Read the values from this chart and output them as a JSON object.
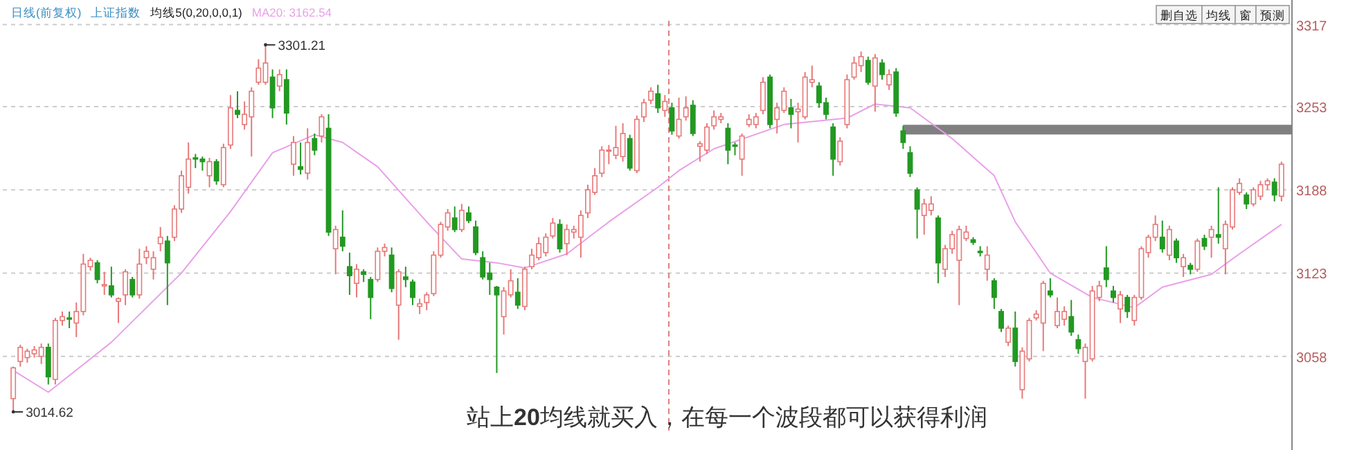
{
  "chart_data": {
    "type": "candlestick",
    "title": "日线(前复权)",
    "subtitle": "上证指数",
    "annotations": [
      "均线5(0,20,0,0,1)",
      "删自选",
      "均线",
      "窗",
      "预测",
      "站上**20**均线就买入，在每一个波段都可以获得利润",
      "3301.21",
      "3014.62"
    ],
    "categories": [
      null,
      null,
      null,
      null,
      null,
      null,
      null,
      null,
      null,
      null,
      null,
      null,
      null,
      null,
      null,
      null,
      null,
      null,
      null,
      null,
      null,
      null,
      null,
      null,
      null,
      null,
      null,
      null,
      null,
      null,
      null,
      null,
      null,
      null,
      null,
      null,
      null,
      null,
      null,
      null,
      null,
      null,
      null,
      null,
      null,
      null,
      null,
      null,
      null,
      null,
      null,
      null,
      null,
      null,
      null,
      null,
      null,
      null,
      null,
      null,
      null,
      null,
      null,
      null,
      null,
      null,
      null,
      null,
      null,
      null,
      null,
      null,
      null,
      null,
      null,
      null,
      null,
      null,
      null,
      null,
      null,
      null,
      null,
      null,
      null,
      null,
      null,
      null,
      null,
      null,
      null,
      null,
      null,
      null,
      null,
      null,
      null,
      null,
      null,
      null,
      null,
      null,
      null,
      null,
      null,
      null,
      null,
      null,
      null,
      null,
      null,
      null,
      null,
      null,
      null,
      null,
      null,
      null,
      null,
      null,
      null,
      null,
      null,
      null,
      null,
      null,
      null,
      null,
      null,
      null,
      null,
      null,
      null,
      null,
      null,
      null,
      null,
      null,
      null,
      null,
      null,
      null,
      null,
      null,
      null,
      null,
      null,
      null,
      null,
      null,
      null,
      null,
      null,
      null,
      null,
      null,
      null,
      null,
      null,
      null,
      null,
      null,
      null,
      null,
      null,
      null,
      null,
      null,
      null,
      null,
      null,
      null,
      null,
      null,
      null,
      null,
      null,
      null,
      null,
      null,
      null,
      null
    ],
    "ohlc": [
      [
        3025,
        3050,
        3014.62,
        3049
      ],
      [
        3054,
        3067,
        3050,
        3065
      ],
      [
        3057,
        3064,
        3053,
        3062
      ],
      [
        3060,
        3066,
        3057,
        3063
      ],
      [
        3058,
        3068,
        3052,
        3065
      ],
      [
        3065,
        3068,
        3036,
        3042
      ],
      [
        3040,
        3088,
        3036,
        3086
      ],
      [
        3086,
        3093,
        3082,
        3089
      ],
      [
        3088,
        3093,
        3080,
        3087
      ],
      [
        3084,
        3100,
        3073,
        3093
      ],
      [
        3093,
        3138,
        3090,
        3130
      ],
      [
        3128,
        3135,
        3125,
        3133
      ],
      [
        3131,
        3133,
        3115,
        3118
      ],
      [
        3113,
        3124,
        3106,
        3114
      ],
      [
        3113,
        3128,
        3104,
        3106
      ],
      [
        3101,
        3104,
        3084,
        3103
      ],
      [
        3106,
        3126,
        3098,
        3124
      ],
      [
        3118,
        3120,
        3104,
        3106
      ],
      [
        3106,
        3142,
        3103,
        3130
      ],
      [
        3135,
        3144,
        3130,
        3140
      ],
      [
        3126,
        3140,
        3118,
        3135
      ],
      [
        3146,
        3159,
        3140,
        3151
      ],
      [
        3148,
        3152,
        3098,
        3131
      ],
      [
        3151,
        3176,
        3148,
        3173
      ],
      [
        3173,
        3203,
        3170,
        3199
      ],
      [
        3190,
        3225,
        3185,
        3212
      ],
      [
        3213,
        3216,
        3205,
        3212
      ],
      [
        3212,
        3214,
        3203,
        3210
      ],
      [
        3199,
        3213,
        3190,
        3210
      ],
      [
        3210,
        3212,
        3192,
        3195
      ],
      [
        3192,
        3224,
        3190,
        3221
      ],
      [
        3223,
        3262,
        3220,
        3252
      ],
      [
        3250,
        3265,
        3244,
        3247
      ],
      [
        3239,
        3257,
        3235,
        3247
      ],
      [
        3245,
        3268,
        3214,
        3265
      ],
      [
        3272,
        3290,
        3270,
        3283
      ],
      [
        3272,
        3301.21,
        3270,
        3287
      ],
      [
        3276,
        3282,
        3244,
        3252
      ],
      [
        3269,
        3282,
        3265,
        3278
      ],
      [
        3274,
        3282,
        3239,
        3248
      ],
      [
        3208,
        3230,
        3199,
        3225
      ],
      [
        3206,
        3225,
        3200,
        3204
      ],
      [
        3201,
        3236,
        3196,
        3225
      ],
      [
        3228,
        3232,
        3215,
        3219
      ],
      [
        3230,
        3247,
        3225,
        3245
      ],
      [
        3236,
        3247,
        3152,
        3155
      ],
      [
        3142,
        3160,
        3122,
        3157
      ],
      [
        3151,
        3172,
        3140,
        3144
      ],
      [
        3128,
        3139,
        3106,
        3121
      ],
      [
        3115,
        3130,
        3104,
        3126
      ],
      [
        3124,
        3126,
        3116,
        3122
      ],
      [
        3118,
        3120,
        3087,
        3104
      ],
      [
        3118,
        3143,
        3116,
        3140
      ],
      [
        3140,
        3146,
        3136,
        3143
      ],
      [
        3137,
        3143,
        3108,
        3111
      ],
      [
        3098,
        3126,
        3071,
        3124
      ],
      [
        3120,
        3128,
        3112,
        3118
      ],
      [
        3116,
        3118,
        3098,
        3104
      ],
      [
        3097,
        3103,
        3091,
        3099
      ],
      [
        3100,
        3108,
        3094,
        3106
      ],
      [
        3107,
        3140,
        3105,
        3137
      ],
      [
        3137,
        3163,
        3135,
        3161
      ],
      [
        3159,
        3173,
        3156,
        3170
      ],
      [
        3166,
        3175,
        3155,
        3157
      ],
      [
        3157,
        3177,
        3155,
        3172
      ],
      [
        3170,
        3175,
        3162,
        3164
      ],
      [
        3159,
        3164,
        3137,
        3139
      ],
      [
        3135,
        3140,
        3118,
        3120
      ],
      [
        3123,
        3131,
        3106,
        3118
      ],
      [
        3112,
        3113,
        3045,
        3106
      ],
      [
        3089,
        3112,
        3075,
        3109
      ],
      [
        3106,
        3126,
        3104,
        3117
      ],
      [
        3108,
        3119,
        3095,
        3098
      ],
      [
        3097,
        3128,
        3094,
        3126
      ],
      [
        3128,
        3142,
        3126,
        3137
      ],
      [
        3135,
        3151,
        3133,
        3146
      ],
      [
        3139,
        3154,
        3136,
        3151
      ],
      [
        3152,
        3166,
        3150,
        3162
      ],
      [
        3161,
        3165,
        3139,
        3142
      ],
      [
        3146,
        3161,
        3137,
        3157
      ],
      [
        3155,
        3160,
        3150,
        3157
      ],
      [
        3151,
        3172,
        3135,
        3168
      ],
      [
        3170,
        3192,
        3166,
        3188
      ],
      [
        3186,
        3205,
        3184,
        3199
      ],
      [
        3201,
        3222,
        3198,
        3219
      ],
      [
        3219,
        3223,
        3208,
        3219
      ],
      [
        3215,
        3238,
        3212,
        3221
      ],
      [
        3214,
        3240,
        3210,
        3232
      ],
      [
        3228,
        3231,
        3203,
        3205
      ],
      [
        3203,
        3246,
        3201,
        3243
      ],
      [
        3245,
        3259,
        3241,
        3256
      ],
      [
        3258,
        3268,
        3255,
        3265
      ],
      [
        3263,
        3270,
        3248,
        3252
      ],
      [
        3250,
        3262,
        3245,
        3257
      ],
      [
        3252,
        3256,
        3231,
        3234
      ],
      [
        3230,
        3260,
        3228,
        3243
      ],
      [
        3245,
        3261,
        3242,
        3252
      ],
      [
        3254,
        3258,
        3230,
        3232
      ],
      [
        3222,
        3226,
        3210,
        3224
      ],
      [
        3219,
        3240,
        3216,
        3237
      ],
      [
        3238,
        3250,
        3235,
        3245
      ],
      [
        3243,
        3248,
        3240,
        3245
      ],
      [
        3236,
        3240,
        3208,
        3219
      ],
      [
        3223,
        3225,
        3215,
        3222
      ],
      [
        3212,
        3232,
        3199,
        3230
      ],
      [
        3239,
        3247,
        3237,
        3243
      ],
      [
        3239,
        3248,
        3236,
        3245
      ],
      [
        3250,
        3276,
        3247,
        3272
      ],
      [
        3276,
        3278,
        3236,
        3239
      ],
      [
        3243,
        3256,
        3232,
        3252
      ],
      [
        3250,
        3268,
        3248,
        3265
      ],
      [
        3252,
        3259,
        3236,
        3247
      ],
      [
        3249,
        3256,
        3225,
        3251
      ],
      [
        3245,
        3280,
        3243,
        3276
      ],
      [
        3272,
        3285,
        3268,
        3274
      ],
      [
        3269,
        3272,
        3252,
        3256
      ],
      [
        3256,
        3260,
        3243,
        3247
      ],
      [
        3237,
        3240,
        3199,
        3212
      ],
      [
        3210,
        3229,
        3207,
        3226
      ],
      [
        3239,
        3278,
        3236,
        3274
      ],
      [
        3276,
        3292,
        3274,
        3287
      ],
      [
        3285,
        3296,
        3280,
        3292
      ],
      [
        3289,
        3292,
        3270,
        3272
      ],
      [
        3269,
        3294,
        3249,
        3291
      ],
      [
        3287,
        3290,
        3274,
        3278
      ],
      [
        3270,
        3282,
        3266,
        3278
      ],
      [
        3280,
        3283,
        3245,
        3248
      ],
      [
        3234,
        3238,
        3220,
        3225
      ],
      [
        3217,
        3222,
        3198,
        3201
      ],
      [
        3188,
        3190,
        3150,
        3173
      ],
      [
        3168,
        3181,
        3153,
        3177
      ],
      [
        3172,
        3183,
        3168,
        3177
      ],
      [
        3166,
        3168,
        3115,
        3131
      ],
      [
        3126,
        3145,
        3120,
        3142
      ],
      [
        3142,
        3156,
        3138,
        3153
      ],
      [
        3133,
        3160,
        3098,
        3157
      ],
      [
        3150,
        3160,
        3148,
        3155
      ],
      [
        3149,
        3151,
        3145,
        3147
      ],
      [
        3140,
        3144,
        3136,
        3139
      ],
      [
        3126,
        3144,
        3117,
        3137
      ],
      [
        3117,
        3119,
        3095,
        3104
      ],
      [
        3093,
        3095,
        3077,
        3080
      ],
      [
        3069,
        3082,
        3066,
        3080
      ],
      [
        3080,
        3093,
        3050,
        3054
      ],
      [
        3032,
        3065,
        3025,
        3062
      ],
      [
        3056,
        3088,
        3054,
        3086
      ],
      [
        3088,
        3094,
        3086,
        3091
      ],
      [
        3084,
        3117,
        3062,
        3115
      ],
      [
        3109,
        3119,
        3104,
        3106
      ],
      [
        3082,
        3104,
        3080,
        3093
      ],
      [
        3087,
        3097,
        3082,
        3093
      ],
      [
        3089,
        3102,
        3074,
        3077
      ],
      [
        3071,
        3075,
        3060,
        3064
      ],
      [
        3054,
        3068,
        3025,
        3065
      ],
      [
        3056,
        3113,
        3054,
        3109
      ],
      [
        3104,
        3117,
        3101,
        3113
      ],
      [
        3127,
        3144,
        3112,
        3118
      ],
      [
        3109,
        3113,
        3100,
        3104
      ],
      [
        3095,
        3109,
        3084,
        3106
      ],
      [
        3104,
        3106,
        3088,
        3093
      ],
      [
        3086,
        3106,
        3082,
        3104
      ],
      [
        3104,
        3144,
        3102,
        3142
      ],
      [
        3139,
        3153,
        3135,
        3151
      ],
      [
        3151,
        3168,
        3148,
        3161
      ],
      [
        3151,
        3164,
        3139,
        3142
      ],
      [
        3137,
        3160,
        3133,
        3157
      ],
      [
        3148,
        3150,
        3131,
        3135
      ],
      [
        3128,
        3138,
        3120,
        3135
      ],
      [
        3129,
        3131,
        3122,
        3126
      ],
      [
        3126,
        3150,
        3124,
        3148
      ],
      [
        3150,
        3153,
        3141,
        3144
      ],
      [
        3151,
        3160,
        3135,
        3157
      ],
      [
        3153,
        3190,
        3146,
        3151
      ],
      [
        3142,
        3164,
        3122,
        3161
      ],
      [
        3159,
        3190,
        3157,
        3188
      ],
      [
        3186,
        3197,
        3184,
        3193
      ],
      [
        3184,
        3186,
        3173,
        3177
      ],
      [
        3177,
        3190,
        3175,
        3188
      ],
      [
        3183,
        3195,
        3180,
        3192
      ],
      [
        3192,
        3197,
        3188,
        3195
      ],
      [
        3194,
        3197,
        3179,
        3184
      ],
      [
        3183,
        3210,
        3179,
        3208
      ]
    ],
    "colors": [
      "#e87878",
      "#e87878",
      "#e87878",
      "#e87878",
      "#e87878",
      "#229922",
      "#e87878",
      "#e87878",
      "#229922",
      "#e87878",
      "#e87878",
      "#e87878",
      "#229922",
      "#e87878",
      "#229922",
      "#e87878",
      "#e87878",
      "#229922",
      "#e87878",
      "#e87878",
      "#e87878",
      "#e87878",
      "#229922",
      "#e87878",
      "#e87878",
      "#e87878",
      "#229922",
      "#229922",
      "#e87878",
      "#229922",
      "#e87878",
      "#e87878",
      "#229922",
      "#e87878",
      "#e87878",
      "#e87878",
      "#e87878",
      "#229922",
      "#e87878",
      "#229922",
      "#e87878",
      "#229922",
      "#e87878",
      "#229922",
      "#e87878",
      "#229922",
      "#e87878",
      "#229922",
      "#229922",
      "#e87878",
      "#229922",
      "#229922",
      "#e87878",
      "#e87878",
      "#229922",
      "#e87878",
      "#229922",
      "#229922",
      "#e87878",
      "#e87878",
      "#e87878",
      "#e87878",
      "#e87878",
      "#229922",
      "#e87878",
      "#229922",
      "#229922",
      "#229922",
      "#229922",
      "#229922",
      "#e87878",
      "#e87878",
      "#229922",
      "#e87878",
      "#e87878",
      "#e87878",
      "#e87878",
      "#e87878",
      "#229922",
      "#e87878",
      "#e87878",
      "#e87878",
      "#e87878",
      "#e87878",
      "#e87878",
      "#e87878",
      "#e87878",
      "#e87878",
      "#229922",
      "#e87878",
      "#e87878",
      "#e87878",
      "#229922",
      "#e87878",
      "#229922",
      "#e87878",
      "#e87878",
      "#229922",
      "#e87878",
      "#e87878",
      "#e87878",
      "#e87878",
      "#229922",
      "#229922",
      "#e87878",
      "#e87878",
      "#e87878",
      "#e87878",
      "#229922",
      "#e87878",
      "#e87878",
      "#229922",
      "#e87878",
      "#e87878",
      "#e87878",
      "#229922",
      "#229922",
      "#229922",
      "#e87878",
      "#e87878",
      "#e87878",
      "#e87878",
      "#229922",
      "#e87878",
      "#229922",
      "#e87878",
      "#229922",
      "#229922",
      "#229922",
      "#229922",
      "#e87878",
      "#e87878",
      "#229922",
      "#e87878",
      "#e87878",
      "#e87878",
      "#e87878",
      "#229922",
      "#229922",
      "#e87878",
      "#229922",
      "#229922",
      "#e87878",
      "#229922",
      "#e87878",
      "#e87878",
      "#e87878",
      "#e87878",
      "#229922",
      "#e87878",
      "#e87878",
      "#229922",
      "#229922",
      "#e87878",
      "#e87878",
      "#e87878",
      "#229922",
      "#229922",
      "#e87878",
      "#229922",
      "#e87878",
      "#e87878",
      "#e87878",
      "#e87878",
      "#229922",
      "#e87878",
      "#229922",
      "#e87878",
      "#229922",
      "#e87878",
      "#229922",
      "#e87878",
      "#229922",
      "#e87878",
      "#e87878",
      "#e87878",
      "#229922",
      "#e87878",
      "#e87878",
      "#e87878",
      "#229922",
      "#e87878"
    ],
    "series": [
      {
        "type": "line",
        "name": "MA20: 3162.54",
        "color": "#e8a0e8",
        "values": [
          3047,
          null,
          null,
          null,
          null,
          3030,
          null,
          null,
          null,
          null,
          null,
          null,
          null,
          null,
          3069,
          null,
          null,
          null,
          null,
          null,
          null,
          null,
          null,
          null,
          3123,
          null,
          null,
          null,
          null,
          null,
          null,
          3171,
          null,
          null,
          null,
          null,
          null,
          3217,
          null,
          null,
          null,
          null,
          null,
          3231,
          null,
          null,
          null,
          3225,
          null,
          null,
          null,
          null,
          3206,
          null,
          null,
          null,
          null,
          null,
          null,
          3163,
          null,
          null,
          null,
          null,
          3134,
          null,
          null,
          null,
          null,
          3131,
          null,
          null,
          null,
          3127,
          null,
          null,
          null,
          null,
          null,
          3138,
          null,
          null,
          null,
          null,
          null,
          3163,
          null,
          null,
          null,
          null,
          null,
          null,
          3190,
          null,
          null,
          3203,
          null,
          null,
          null,
          null,
          3220,
          null,
          null,
          null,
          null,
          null,
          null,
          null,
          null,
          null,
          3239,
          null,
          null,
          null,
          null,
          null,
          null,
          null,
          null,
          3244,
          null,
          null,
          null,
          3255,
          null,
          null,
          null,
          null,
          3252,
          null,
          null,
          null,
          null,
          null,
          3228,
          null,
          null,
          null,
          null,
          null,
          3199,
          null,
          null,
          3163,
          null,
          null,
          null,
          null,
          3123,
          null,
          null,
          null,
          null,
          null,
          3104,
          null,
          null,
          null,
          null,
          null,
          3096,
          null,
          null,
          null,
          3112,
          null,
          null,
          null,
          null,
          null,
          null,
          3122,
          null,
          null,
          null,
          3138,
          null,
          null,
          null,
          null,
          null,
          3161
        ]
      }
    ],
    "ylim": [
      3000,
      3320
    ],
    "yticks": [
      3058,
      3123,
      3188,
      3253,
      3317
    ],
    "grid": "y",
    "ref_lines": [
      {
        "axis": "y",
        "value": 3235,
        "color": "#808080"
      }
    ]
  }
}
